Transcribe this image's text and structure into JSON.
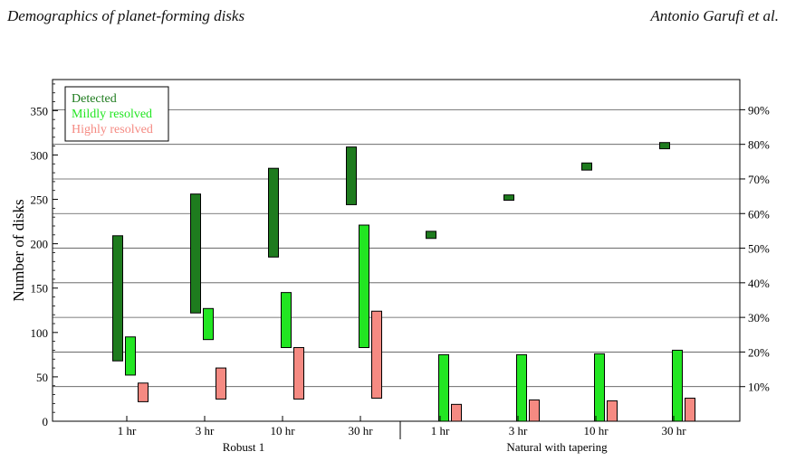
{
  "header": {
    "left": "Demographics of planet-forming disks",
    "right": "Antonio Garufi et al."
  },
  "chart_data": {
    "type": "bar",
    "subtype": "floating-range",
    "ylabel": "Number of disks",
    "ylim": [
      0,
      385
    ],
    "yticks": [
      0,
      50,
      100,
      150,
      200,
      250,
      300,
      350
    ],
    "right_axis_ticks": [
      "10%",
      "20%",
      "30%",
      "40%",
      "50%",
      "60%",
      "70%",
      "80%",
      "90%"
    ],
    "right_axis_values": [
      39,
      78,
      117,
      156,
      195,
      234,
      273,
      312,
      351
    ],
    "grid": "horizontal-at-right-axis-ticks",
    "legend": "top-left",
    "groups": [
      {
        "label": "Robust 1",
        "categories": [
          "1 hr",
          "3 hr",
          "10 hr",
          "30 hr"
        ]
      },
      {
        "label": "Natural with tapering",
        "categories": [
          "1 hr",
          "3 hr",
          "10 hr",
          "30 hr"
        ]
      }
    ],
    "series": [
      {
        "name": "Detected",
        "color": "#1e7b1e",
        "ranges": [
          [
            68,
            209
          ],
          [
            122,
            256
          ],
          [
            185,
            285
          ],
          [
            244,
            309
          ],
          [
            206,
            214
          ],
          [
            249,
            255
          ],
          [
            283,
            291
          ],
          [
            307,
            314
          ]
        ]
      },
      {
        "name": "Mildly resolved",
        "color": "#22e622",
        "ranges": [
          [
            52,
            95
          ],
          [
            92,
            127
          ],
          [
            83,
            145
          ],
          [
            83,
            221
          ],
          [
            0,
            75
          ],
          [
            0,
            75
          ],
          [
            0,
            76
          ],
          [
            0,
            80
          ]
        ]
      },
      {
        "name": "Highly resolved",
        "color": "#f58a82",
        "ranges": [
          [
            22,
            43
          ],
          [
            25,
            60
          ],
          [
            25,
            83
          ],
          [
            26,
            124
          ],
          [
            0,
            19
          ],
          [
            0,
            24
          ],
          [
            0,
            23
          ],
          [
            0,
            26
          ]
        ]
      }
    ]
  }
}
